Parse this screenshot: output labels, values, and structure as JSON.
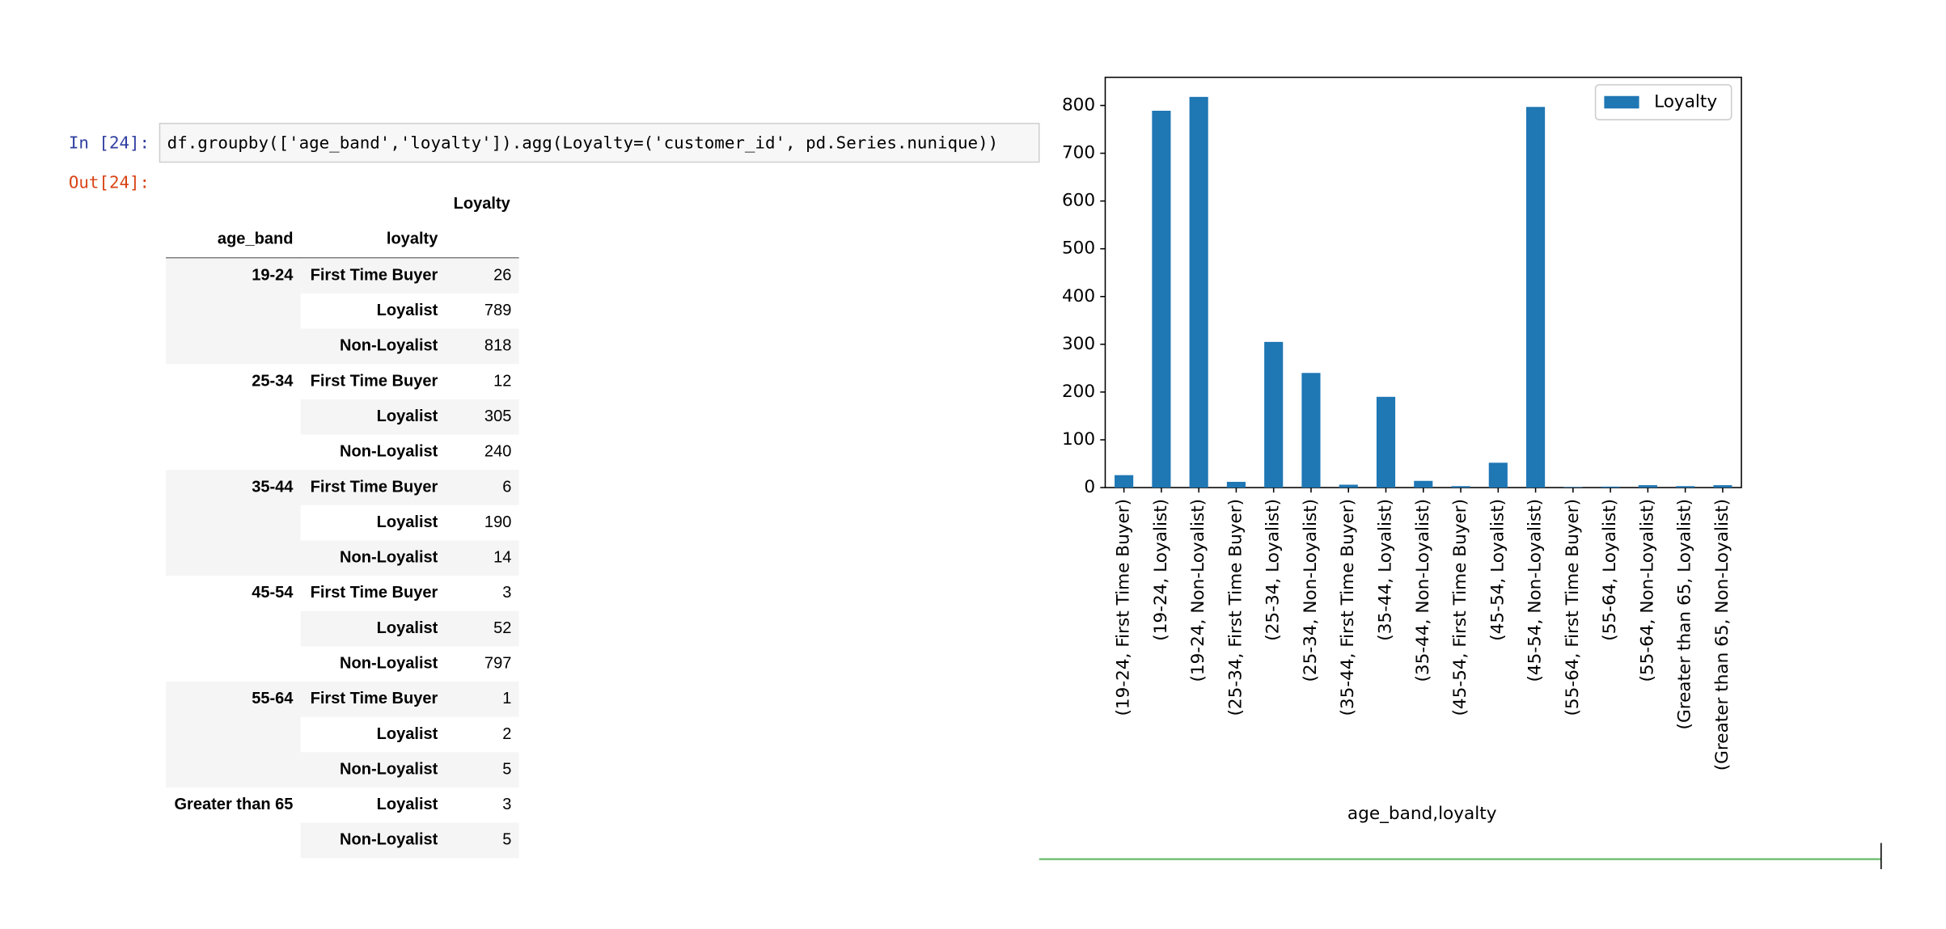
{
  "cell": {
    "in_prompt": "In [24]:",
    "code": "df.groupby(['age_band','loyalty']).agg(Loyalty=('customer_id', pd.Series.nunique))",
    "out_prompt": "Out[24]:"
  },
  "table": {
    "column": "Loyalty",
    "index_names": [
      "age_band",
      "loyalty"
    ],
    "groups": [
      {
        "age_band": "19-24",
        "rows": [
          {
            "loyalty": "First Time Buyer",
            "count": 26
          },
          {
            "loyalty": "Loyalist",
            "count": 789
          },
          {
            "loyalty": "Non-Loyalist",
            "count": 818
          }
        ]
      },
      {
        "age_band": "25-34",
        "rows": [
          {
            "loyalty": "First Time Buyer",
            "count": 12
          },
          {
            "loyalty": "Loyalist",
            "count": 305
          },
          {
            "loyalty": "Non-Loyalist",
            "count": 240
          }
        ]
      },
      {
        "age_band": "35-44",
        "rows": [
          {
            "loyalty": "First Time Buyer",
            "count": 6
          },
          {
            "loyalty": "Loyalist",
            "count": 190
          },
          {
            "loyalty": "Non-Loyalist",
            "count": 14
          }
        ]
      },
      {
        "age_band": "45-54",
        "rows": [
          {
            "loyalty": "First Time Buyer",
            "count": 3
          },
          {
            "loyalty": "Loyalist",
            "count": 52
          },
          {
            "loyalty": "Non-Loyalist",
            "count": 797
          }
        ]
      },
      {
        "age_band": "55-64",
        "rows": [
          {
            "loyalty": "First Time Buyer",
            "count": 1
          },
          {
            "loyalty": "Loyalist",
            "count": 2
          },
          {
            "loyalty": "Non-Loyalist",
            "count": 5
          }
        ]
      },
      {
        "age_band": "Greater than 65",
        "rows": [
          {
            "loyalty": "Loyalist",
            "count": 3
          },
          {
            "loyalty": "Non-Loyalist",
            "count": 5
          }
        ]
      }
    ]
  },
  "chart_data": {
    "type": "bar",
    "x_label": "age_band,loyalty",
    "categories": [
      "(19-24, First Time Buyer)",
      "(19-24, Loyalist)",
      "(19-24, Non-Loyalist)",
      "(25-34, First Time Buyer)",
      "(25-34, Loyalist)",
      "(25-34, Non-Loyalist)",
      "(35-44, First Time Buyer)",
      "(35-44, Loyalist)",
      "(35-44, Non-Loyalist)",
      "(45-54, First Time Buyer)",
      "(45-54, Loyalist)",
      "(45-54, Non-Loyalist)",
      "(55-64, First Time Buyer)",
      "(55-64, Loyalist)",
      "(55-64, Non-Loyalist)",
      "(Greater than 65, Loyalist)",
      "(Greater than 65, Non-Loyalist)"
    ],
    "series": [
      {
        "name": "Loyalty",
        "color": "#1f77b4",
        "values": [
          26,
          789,
          818,
          12,
          305,
          240,
          6,
          190,
          14,
          3,
          52,
          797,
          1,
          2,
          5,
          3,
          5
        ]
      }
    ],
    "ylim": [
      0,
      859
    ],
    "yticks": [
      0,
      100,
      200,
      300,
      400,
      500,
      600,
      700,
      800
    ],
    "grid": false,
    "legend": "upper right"
  }
}
